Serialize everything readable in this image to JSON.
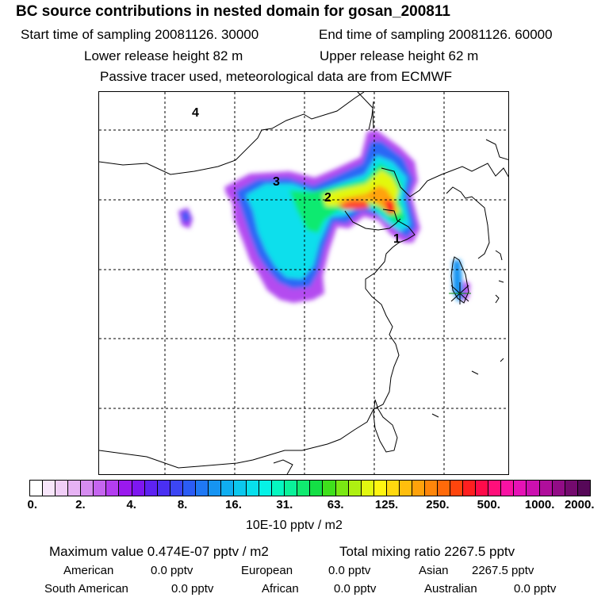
{
  "header": {
    "title": "BC  source contributions in nested domain for gosan_200811",
    "start_time": "Start time of sampling 20081126. 30000",
    "end_time": "End time of sampling 20081126. 60000",
    "lower_height": "Lower release height   82 m",
    "upper_height": "Upper release height   62 m",
    "tracer_note": "Passive tracer used, meteorological data are from ECMWF"
  },
  "map": {
    "region_labels": [
      "4",
      "3",
      "2",
      "1"
    ],
    "receptor_marker": "star-icon"
  },
  "colorbar": {
    "tick_labels": [
      "0.",
      "2.",
      "4.",
      "8.",
      "16.",
      "31.",
      "63.",
      "125.",
      "250.",
      "500.",
      "1000.",
      "2000."
    ],
    "colors": [
      "#ffffff",
      "#f8e6fb",
      "#f0cef7",
      "#e6b2f3",
      "#d68cf0",
      "#c565ef",
      "#b33df0",
      "#9a19ee",
      "#7e17f0",
      "#5e22f2",
      "#4a2ff2",
      "#3c46f4",
      "#2b5cf5",
      "#1f78f4",
      "#1694f2",
      "#10aef0",
      "#0cc8ee",
      "#08dfec",
      "#06f2e6",
      "#06f6c0",
      "#0af29a",
      "#10ea70",
      "#14df45",
      "#3fe01c",
      "#7ae813",
      "#aef012",
      "#e2f811",
      "#fff511",
      "#ffd90f",
      "#ffbe0d",
      "#ffa20b",
      "#ff860a",
      "#ff6a0a",
      "#ff450d",
      "#ff1f20",
      "#ff0b4a",
      "#ff0f7a",
      "#f812a3",
      "#e612b6",
      "#cc10b0",
      "#b00e9c",
      "#920c86",
      "#740a6e",
      "#560858"
    ],
    "unit": "10E-10 pptv / m2"
  },
  "stats": {
    "max_label": "Maximum value  0.474E-07 pptv / m2",
    "total_label": "Total mixing ratio     2267.5 pptv",
    "american_label": "American",
    "american_value": "0.0 pptv",
    "european_label": "European",
    "european_value": "0.0 pptv",
    "asian_label": "Asian",
    "asian_value": "2267.5 pptv",
    "south_american_label": "South American",
    "south_american_value": "0.0 pptv",
    "african_label": "African",
    "african_value": "0.0 pptv",
    "australian_label": "Australian",
    "australian_value": "0.0 pptv"
  }
}
